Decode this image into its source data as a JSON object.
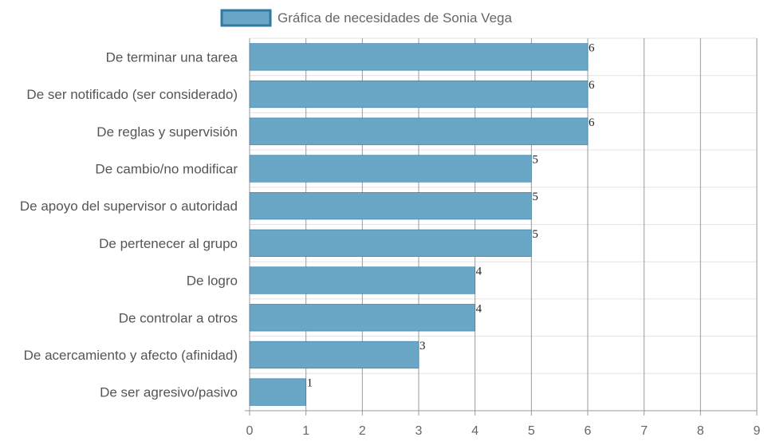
{
  "chart_data": {
    "type": "bar",
    "orientation": "horizontal",
    "title": "",
    "xlabel": "",
    "ylabel": "",
    "xlim": [
      0,
      9
    ],
    "xticks": [
      0,
      1,
      2,
      3,
      4,
      5,
      6,
      7,
      8,
      9
    ],
    "grid": true,
    "legend_position": "top",
    "categories": [
      "De terminar una tarea",
      "De ser notificado (ser considerado)",
      "De reglas y supervisión",
      "De cambio/no modificar",
      "De apoyo del supervisor o autoridad",
      "De pertenecer al grupo",
      "De logro",
      "De controlar a otros",
      "De acercamiento y afecto (afinidad)",
      "De ser agresivo/pasivo"
    ],
    "series": [
      {
        "name": "Gráfica de necesidades de Sonia Vega",
        "values": [
          6,
          6,
          6,
          5,
          5,
          5,
          4,
          4,
          3,
          1
        ],
        "color": "#6aa6c6",
        "border_color": "#2e7aa2"
      }
    ]
  }
}
